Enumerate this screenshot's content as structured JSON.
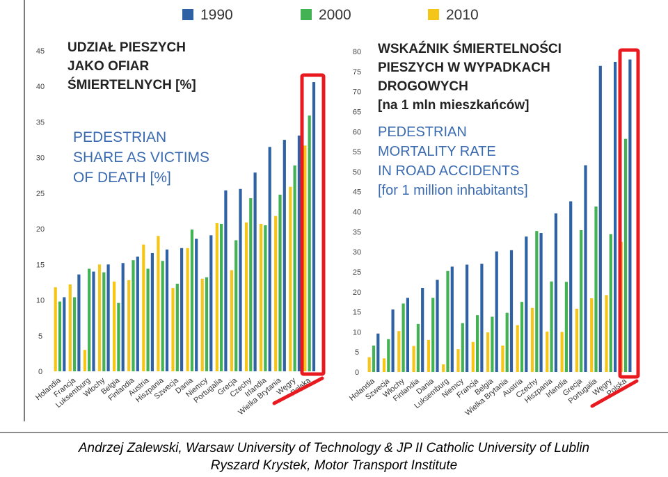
{
  "legend": [
    {
      "label": "1990",
      "color": "#2f62a5"
    },
    {
      "label": "2000",
      "color": "#43b254"
    },
    {
      "label": "2010",
      "color": "#f5c518"
    }
  ],
  "highlight_color": "#e8191f",
  "chart_data": [
    {
      "type": "bar",
      "title_pl": [
        "UDZIAŁ PIESZYCH",
        "JAKO OFIAR",
        "ŚMIERTELNYCH [%]"
      ],
      "title_en": [
        "PEDESTRIAN",
        "SHARE AS VICTIMS",
        "OF DEATH [%]"
      ],
      "ylim": [
        0,
        45
      ],
      "yticks": [
        0,
        5,
        10,
        15,
        20,
        25,
        30,
        35,
        40,
        45
      ],
      "categories": [
        "Holandia",
        "Francja",
        "Luksemburg",
        "Włochy",
        "Belgia",
        "Finlandia",
        "Austria",
        "Hiszpania",
        "Szwecja",
        "Dania",
        "Niemcy",
        "Portugalia",
        "Grecja",
        "Czechy",
        "Irlandia",
        "Wielka Brytania",
        "Węgry",
        "Polska"
      ],
      "series": [
        {
          "name": "2010",
          "values": [
            11.8,
            12.2,
            3.0,
            15.0,
            12.6,
            12.8,
            17.8,
            19.0,
            11.7,
            17.3,
            13.0,
            20.8,
            14.2,
            20.9,
            20.7,
            21.8,
            25.9,
            31.7
          ]
        },
        {
          "name": "2000",
          "values": [
            9.8,
            10.4,
            14.4,
            13.9,
            9.6,
            15.6,
            14.4,
            15.5,
            12.3,
            19.9,
            13.2,
            20.7,
            18.4,
            24.3,
            20.5,
            24.8,
            28.9,
            35.9
          ]
        },
        {
          "name": "1990",
          "values": [
            10.4,
            13.6,
            14.0,
            15.0,
            15.2,
            16.1,
            16.6,
            17.1,
            17.3,
            18.6,
            19.1,
            25.4,
            25.6,
            27.9,
            31.5,
            32.5,
            33.1,
            40.6
          ]
        }
      ],
      "highlighted": "Polska"
    },
    {
      "type": "bar",
      "title_pl": [
        "WSKAŹNIK ŚMIERTELNOŚCI",
        "PIESZYCH W WYPADKACH",
        "DROGOWYCH",
        "[na 1 mln mieszkańców]"
      ],
      "title_en": [
        "PEDESTRIAN",
        "MORTALITY RATE",
        "IN ROAD ACCIDENTS",
        "[for 1 million inhabitants]"
      ],
      "ylim": [
        0,
        80
      ],
      "yticks": [
        0,
        5,
        10,
        15,
        20,
        25,
        30,
        35,
        40,
        45,
        50,
        55,
        60,
        65,
        70,
        75,
        80
      ],
      "categories": [
        "Holandia",
        "Szwecja",
        "Włochy",
        "Finlandia",
        "Dania",
        "Luksemburg",
        "Niemcy",
        "Francja",
        "Belgia",
        "Wielka Brytania",
        "Austria",
        "Czechy",
        "Hiszpania",
        "Irlandia",
        "Grecja",
        "Portugalia",
        "Węgry",
        "Polska"
      ],
      "series": [
        {
          "name": "2010",
          "values": [
            3.7,
            3.4,
            10.2,
            6.5,
            8.0,
            1.9,
            5.7,
            7.5,
            9.9,
            6.6,
            11.7,
            16.0,
            10.1,
            10.0,
            15.8,
            18.4,
            19.2,
            32.5
          ]
        },
        {
          "name": "2000",
          "values": [
            6.6,
            8.2,
            17.1,
            12.0,
            18.5,
            25.2,
            12.2,
            14.2,
            13.8,
            14.8,
            17.5,
            35.2,
            22.6,
            22.5,
            35.4,
            41.3,
            34.4,
            58.2
          ]
        },
        {
          "name": "1990",
          "values": [
            9.6,
            15.6,
            18.5,
            21.0,
            23.0,
            26.3,
            26.8,
            27.0,
            30.1,
            30.4,
            33.8,
            34.7,
            39.6,
            42.6,
            51.6,
            76.4,
            77.4,
            78.0
          ]
        }
      ],
      "highlighted": "Polska"
    }
  ],
  "credits": [
    "Andrzej Zalewski, Warsaw University of Technology & JP II Catholic University of Lublin",
    "Ryszard Krystek, Motor Transport Institute"
  ]
}
